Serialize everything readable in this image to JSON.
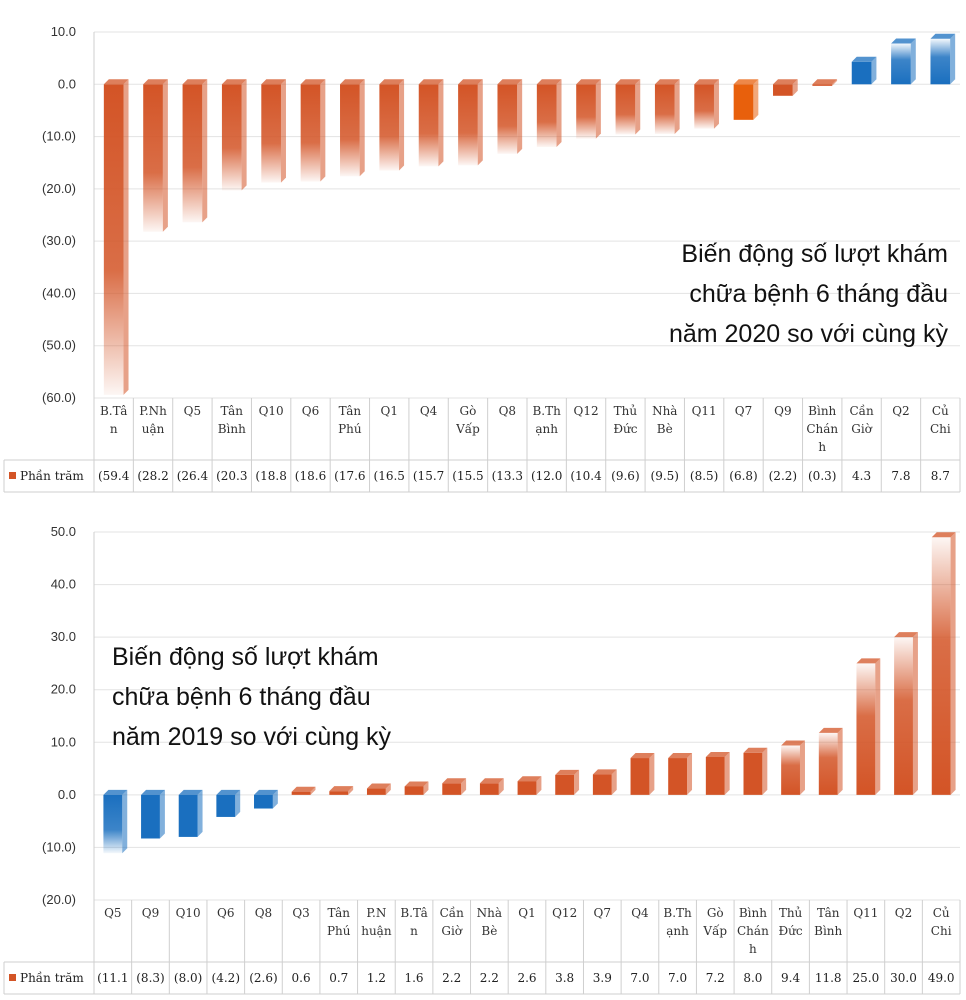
{
  "colors": {
    "negative_2020": "#D35426",
    "positive_2020": "#1A6FBF",
    "negative_2019": "#1A6FBF",
    "positive_2019": "#D35426",
    "highlight": "#E8600C"
  },
  "chart_data": [
    {
      "type": "bar",
      "note_lines": [
        "Biến động số lượt khám",
        "chữa bệnh 6 tháng đầu",
        "năm 2020 so với cùng kỳ"
      ],
      "legend": "Phần trăm",
      "ylim": [
        -60,
        10
      ],
      "yticks": [
        "10.0",
        "0.0",
        "(10.0)",
        "(20.0)",
        "(30.0)",
        "(40.0)",
        "(50.0)",
        "(60.0)"
      ],
      "categories": [
        "B.Tân",
        "P.Nhuận",
        "Q5",
        "Tân Bình",
        "Q10",
        "Q6",
        "Tân Phú",
        "Q1",
        "Q4",
        "Gò Vấp",
        "Q8",
        "B.Thạnh",
        "Q12",
        "Thủ Đức",
        "Nhà Bè",
        "Q11",
        "Q7",
        "Q9",
        "Bình Chánh",
        "Cần Giờ",
        "Q2",
        "Củ Chi"
      ],
      "category_lines": [
        [
          "B.Tâ",
          "n"
        ],
        [
          "P.Nh",
          "uận"
        ],
        [
          "Q5"
        ],
        [
          "Tân",
          "Bình"
        ],
        [
          "Q10"
        ],
        [
          "Q6"
        ],
        [
          "Tân",
          "Phú"
        ],
        [
          "Q1"
        ],
        [
          "Q4"
        ],
        [
          "Gò",
          "Vấp"
        ],
        [
          "Q8"
        ],
        [
          "B.Th",
          "ạnh"
        ],
        [
          "Q12"
        ],
        [
          "Thủ",
          "Đức"
        ],
        [
          "Nhà",
          "Bè"
        ],
        [
          "Q11"
        ],
        [
          "Q7"
        ],
        [
          "Q9"
        ],
        [
          "Bình",
          "Chán",
          "h"
        ],
        [
          "Cần",
          "Giờ"
        ],
        [
          "Q2"
        ],
        [
          "Củ",
          "Chi"
        ]
      ],
      "values": [
        -59.4,
        -28.2,
        -26.4,
        -20.3,
        -18.8,
        -18.6,
        -17.6,
        -16.5,
        -15.7,
        -15.5,
        -13.3,
        -12.0,
        -10.4,
        -9.6,
        -9.5,
        -8.5,
        -6.8,
        -2.2,
        -0.3,
        4.3,
        7.8,
        8.7
      ],
      "value_labels": [
        "(59.4",
        "(28.2",
        "(26.4",
        "(20.3",
        "(18.8",
        "(18.6",
        "(17.6",
        "(16.5",
        "(15.7",
        "(15.5",
        "(13.3",
        "(12.0",
        "(10.4",
        "(9.6)",
        "(9.5)",
        "(8.5)",
        "(6.8)",
        "(2.2)",
        "(0.3)",
        "4.3",
        "7.8",
        "8.7"
      ]
    },
    {
      "type": "bar",
      "note_lines": [
        "Biến động số lượt khám",
        "chữa bệnh 6 tháng đầu",
        "năm 2019 so với cùng kỳ"
      ],
      "legend": "Phần trăm",
      "ylim": [
        -20,
        50
      ],
      "yticks": [
        "50.0",
        "40.0",
        "30.0",
        "20.0",
        "10.0",
        "0.0",
        "(10.0)",
        "(20.0)"
      ],
      "categories": [
        "Q5",
        "Q9",
        "Q10",
        "Q6",
        "Q8",
        "Q3",
        "Tân Phú",
        "P.Nhuận",
        "B.Tân",
        "Cần Giờ",
        "Nhà Bè",
        "Q1",
        "Q12",
        "Q7",
        "Q4",
        "B.Thạnh",
        "Gò Vấp",
        "Bình Chánh",
        "Thủ Đức",
        "Tân Bình",
        "Q11",
        "Q2",
        "Củ Chi"
      ],
      "category_lines": [
        [
          "Q5"
        ],
        [
          "Q9"
        ],
        [
          "Q10"
        ],
        [
          "Q6"
        ],
        [
          "Q8"
        ],
        [
          "Q3"
        ],
        [
          "Tân",
          "Phú"
        ],
        [
          "P.N",
          "huận"
        ],
        [
          "B.Tâ",
          "n"
        ],
        [
          "Cần",
          "Giờ"
        ],
        [
          "Nhà",
          "Bè"
        ],
        [
          "Q1"
        ],
        [
          "Q12"
        ],
        [
          "Q7"
        ],
        [
          "Q4"
        ],
        [
          "B.Th",
          "ạnh"
        ],
        [
          "Gò",
          "Vấp"
        ],
        [
          "Bình",
          "Chán",
          "h"
        ],
        [
          "Thủ",
          "Đức"
        ],
        [
          "Tân",
          "Bình"
        ],
        [
          "Q11"
        ],
        [
          "Q2"
        ],
        [
          "Củ",
          "Chi"
        ]
      ],
      "values": [
        -11.1,
        -8.3,
        -8.0,
        -4.2,
        -2.6,
        0.6,
        0.7,
        1.2,
        1.6,
        2.2,
        2.2,
        2.6,
        3.8,
        3.9,
        7.0,
        7.0,
        7.2,
        8.0,
        9.4,
        11.8,
        25.0,
        30.0,
        49.0
      ],
      "value_labels": [
        "(11.1",
        "(8.3)",
        "(8.0)",
        "(4.2)",
        "(2.6)",
        "0.6",
        "0.7",
        "1.2",
        "1.6",
        "2.2",
        "2.2",
        "2.6",
        "3.8",
        "3.9",
        "7.0",
        "7.0",
        "7.2",
        "8.0",
        "9.4",
        "11.8",
        "25.0",
        "30.0",
        "49.0"
      ]
    }
  ]
}
